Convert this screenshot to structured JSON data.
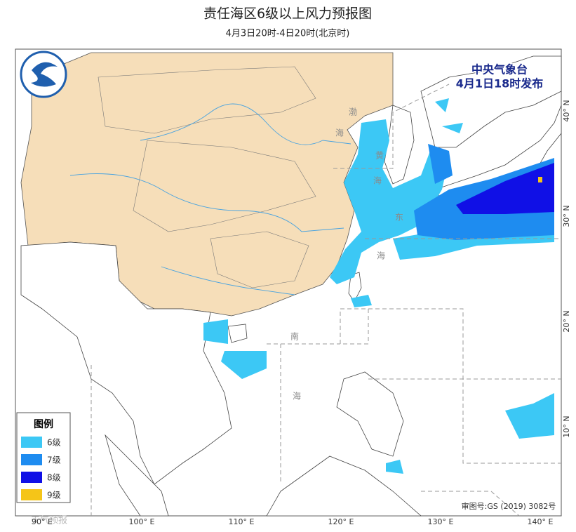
{
  "header": {
    "title": "责任海区6级以上风力预报图",
    "subtitle": "4月3日20时-4日20时(北京时)"
  },
  "issuer": {
    "name": "中央气象台",
    "time": "4月1日18时发布"
  },
  "legend": {
    "title": "图例",
    "items": [
      {
        "label": "6级",
        "color": "#3cc8f5"
      },
      {
        "label": "7级",
        "color": "#1e8cf0"
      },
      {
        "label": "8级",
        "color": "#1010e6"
      },
      {
        "label": "9级",
        "color": "#f5c518"
      }
    ]
  },
  "axes": {
    "lon_labels": [
      "90° E",
      "100° E",
      "110° E",
      "120° E",
      "130° E",
      "140° E"
    ],
    "lat_labels": [
      "40° N",
      "30° N",
      "20° N",
      "10° N"
    ]
  },
  "sea_labels": {
    "bohai": [
      "渤",
      "海"
    ],
    "yellow": [
      "黄",
      "海"
    ],
    "east": [
      "东",
      "海"
    ],
    "south": [
      "南",
      "海"
    ]
  },
  "footer": {
    "approval": "审图号:GS (2019) 3082号",
    "watermark": "天气预报"
  }
}
